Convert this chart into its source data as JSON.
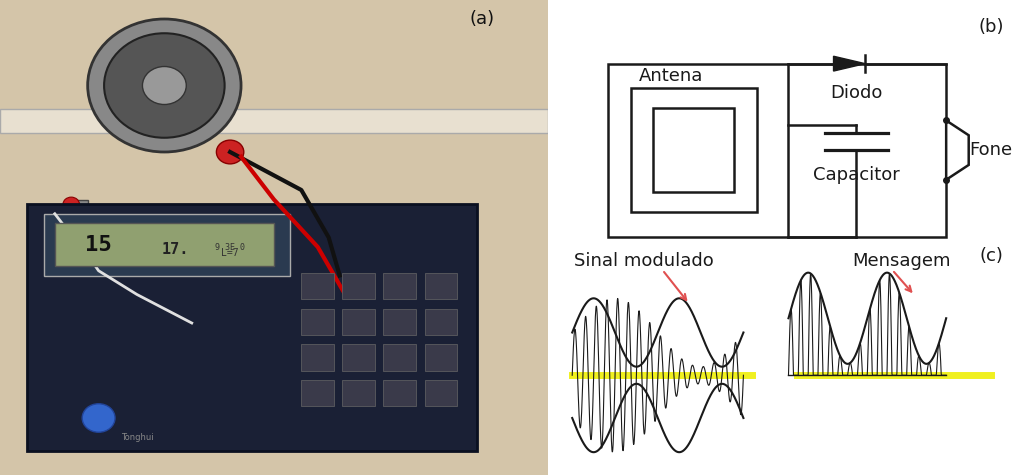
{
  "photo_placeholder_color": "#c8b89a",
  "bg_color": "#ffffff",
  "panel_a_label": "(a)",
  "panel_b_label": "(b)",
  "panel_c_label": "(c)",
  "circuit_color": "#1a1a1a",
  "text_antena": "Antena",
  "text_diodo": "Diodo",
  "text_capacitor": "Capacitor",
  "text_fone": "Fone",
  "text_sinal": "Sinal modulado",
  "text_mensagem": "Mensagem",
  "label_fontsize": 13,
  "circuit_fontsize": 13,
  "signal_fontsize": 13,
  "yellow_line_color": "#f0f020",
  "arrow_color": "#e05050"
}
